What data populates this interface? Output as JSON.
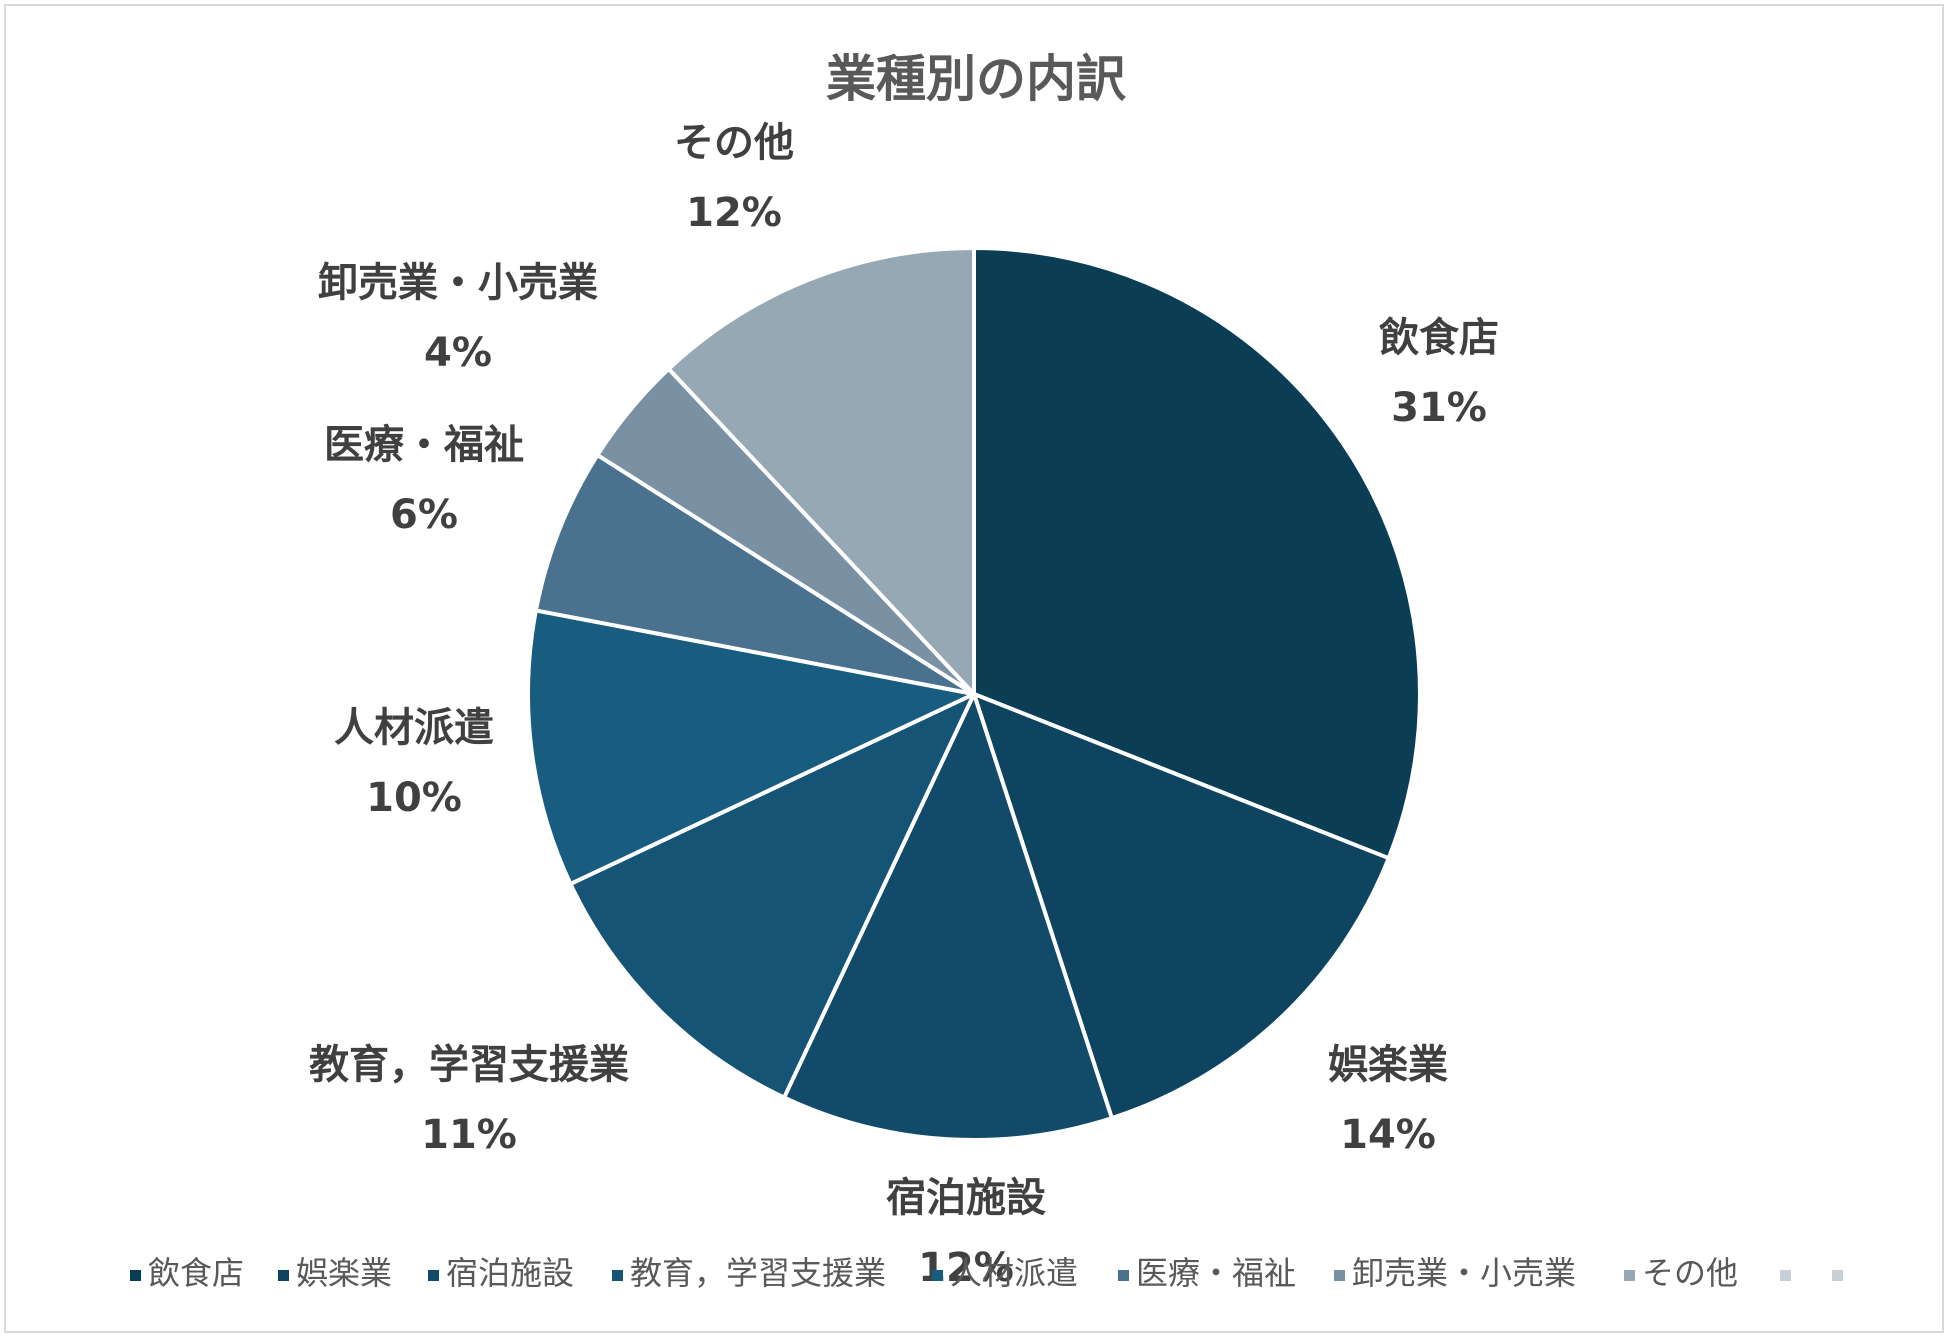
{
  "chart_data": {
    "type": "pie",
    "title": "業種別の内訳",
    "start_angle_deg": 0,
    "direction": "clockwise",
    "slice_border_color": "#ffffff",
    "legend_position": "bottom",
    "slices": [
      {
        "label": "飲食店",
        "percent_label": "31%",
        "value": 31,
        "color": "#0b3d55"
      },
      {
        "label": "娯楽業",
        "percent_label": "14%",
        "value": 14,
        "color": "#0e4460"
      },
      {
        "label": "宿泊施設",
        "percent_label": "12%",
        "value": 12,
        "color": "#124b6a"
      },
      {
        "label": "教育，学習支援業",
        "percent_label": "11%",
        "value": 11,
        "color": "#155475"
      },
      {
        "label": "人材派遣",
        "percent_label": "10%",
        "value": 10,
        "color": "#185d7f"
      },
      {
        "label": "医療・福祉",
        "percent_label": "6%",
        "value": 6,
        "color": "#4a728e"
      },
      {
        "label": "卸売業・小売業",
        "percent_label": "4%",
        "value": 4,
        "color": "#7a91a3"
      },
      {
        "label": "その他",
        "percent_label": "12%",
        "value": 12,
        "color": "#97a8b5"
      }
    ],
    "legend_extra_color": "#c7d0d7"
  }
}
